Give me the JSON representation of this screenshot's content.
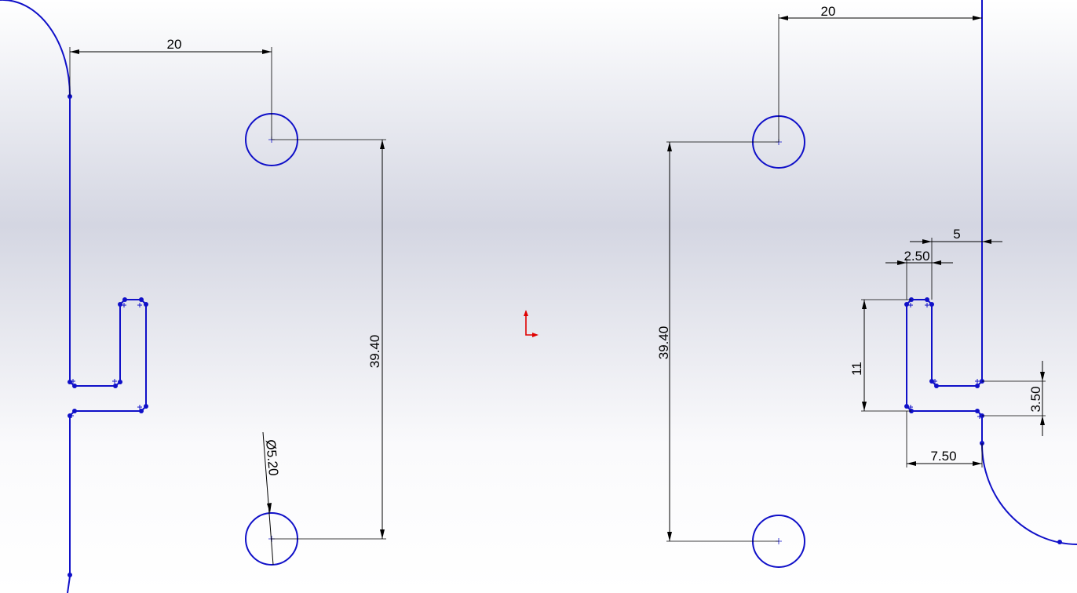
{
  "colors": {
    "sketch_geometry": "#1010c8",
    "dimensions": "#000000",
    "origin": "#e00000"
  },
  "dimensions": {
    "left_horizontal_spacing": "20",
    "left_vertical_spacing": "39.40",
    "hole_diameter": "Ø5.20",
    "right_horizontal_spacing": "20",
    "right_vertical_spacing": "39.40",
    "right_edge_offset": "5",
    "slot_inner_width": "2.50",
    "slot_height": "11",
    "slot_gap": "3.50",
    "slot_outer_width": "7.50"
  },
  "icons": {
    "origin": "origin-icon"
  }
}
